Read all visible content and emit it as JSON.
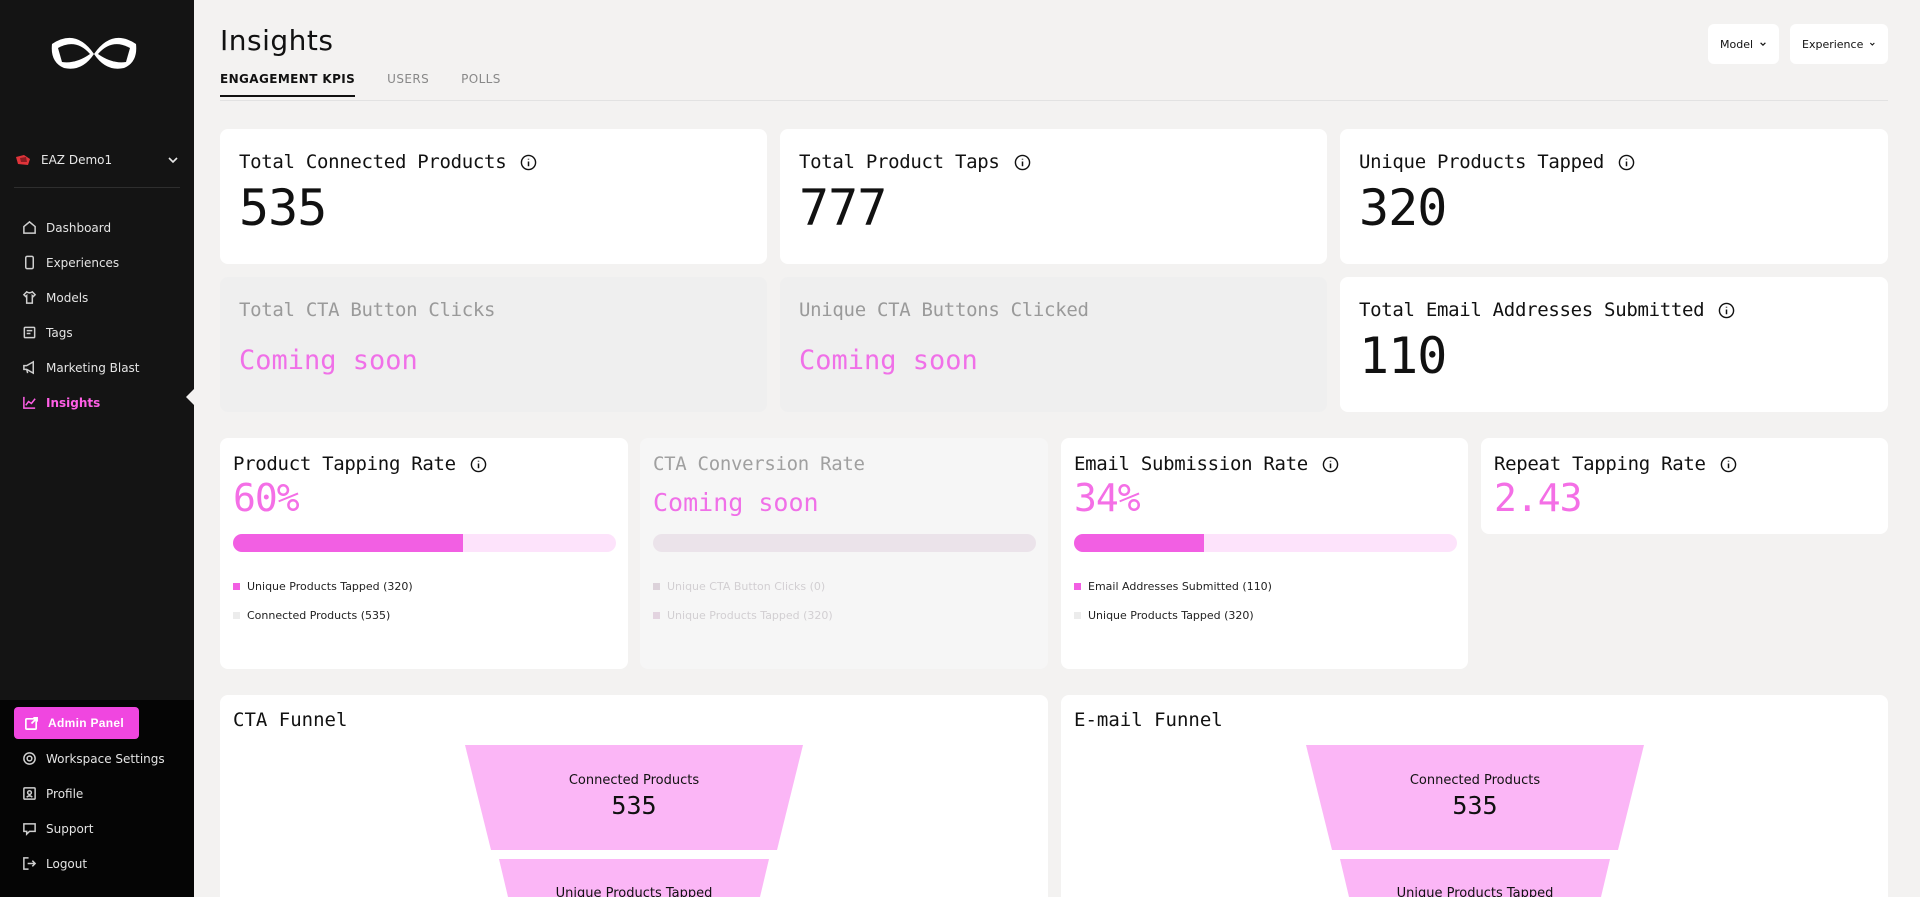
{
  "sidebar": {
    "workspace": "EAZ Demo1",
    "nav": [
      {
        "label": "Dashboard",
        "icon": "dashboard-icon"
      },
      {
        "label": "Experiences",
        "icon": "phone-icon"
      },
      {
        "label": "Models",
        "icon": "shirt-icon"
      },
      {
        "label": "Tags",
        "icon": "tag-icon"
      },
      {
        "label": "Marketing Blast",
        "icon": "megaphone-icon"
      },
      {
        "label": "Insights",
        "icon": "chart-icon",
        "active": true
      }
    ],
    "admin_panel": "Admin Panel",
    "bottom_nav": [
      {
        "label": "Workspace Settings",
        "icon": "gear-icon"
      },
      {
        "label": "Profile",
        "icon": "profile-icon"
      },
      {
        "label": "Support",
        "icon": "support-icon"
      },
      {
        "label": "Logout",
        "icon": "logout-icon"
      }
    ]
  },
  "header": {
    "title": "Insights",
    "tabs": [
      "ENGAGEMENT KPIS",
      "USERS",
      "POLLS"
    ],
    "active_tab": "ENGAGEMENT KPIS",
    "filters": {
      "model": "Model",
      "experience": "Experience"
    }
  },
  "kpis": {
    "total_connected": {
      "label": "Total Connected Products",
      "value": "535"
    },
    "total_taps": {
      "label": "Total Product Taps",
      "value": "777"
    },
    "unique_tapped": {
      "label": "Unique Products Tapped",
      "value": "320"
    },
    "cta_clicks": {
      "label": "Total CTA Button Clicks",
      "value": "Coming soon"
    },
    "cta_unique": {
      "label": "Unique CTA Buttons Clicked",
      "value": "Coming soon"
    },
    "emails": {
      "label": "Total Email Addresses Submitted",
      "value": "110"
    }
  },
  "rates": {
    "tapping": {
      "label": "Product Tapping Rate",
      "value": "60%",
      "fill": 0.6,
      "legend": [
        "Unique Products Tapped (320)",
        "Connected Products (535)"
      ]
    },
    "cta": {
      "label": "CTA Conversion Rate",
      "value": "Coming soon",
      "legend": [
        "Unique CTA Button Clicks (0)",
        "Unique Products Tapped (320)"
      ]
    },
    "email": {
      "label": "Email Submission Rate",
      "value": "34%",
      "fill": 0.34,
      "legend": [
        "Email Addresses Submitted (110)",
        "Unique Products Tapped (320)"
      ]
    },
    "repeat": {
      "label": "Repeat Tapping Rate",
      "value": "2.43"
    }
  },
  "funnels": {
    "cta": {
      "title": "CTA Funnel",
      "stages": [
        {
          "label": "Connected Products",
          "value": "535"
        },
        {
          "label": "Unique Products Tapped",
          "value": ""
        }
      ]
    },
    "email": {
      "title": "E-mail Funnel",
      "stages": [
        {
          "label": "Connected Products",
          "value": "535"
        },
        {
          "label": "Unique Products Tapped",
          "value": ""
        }
      ]
    }
  },
  "colors": {
    "accent": "#f046e0",
    "funnel": "#fbb6f6"
  }
}
